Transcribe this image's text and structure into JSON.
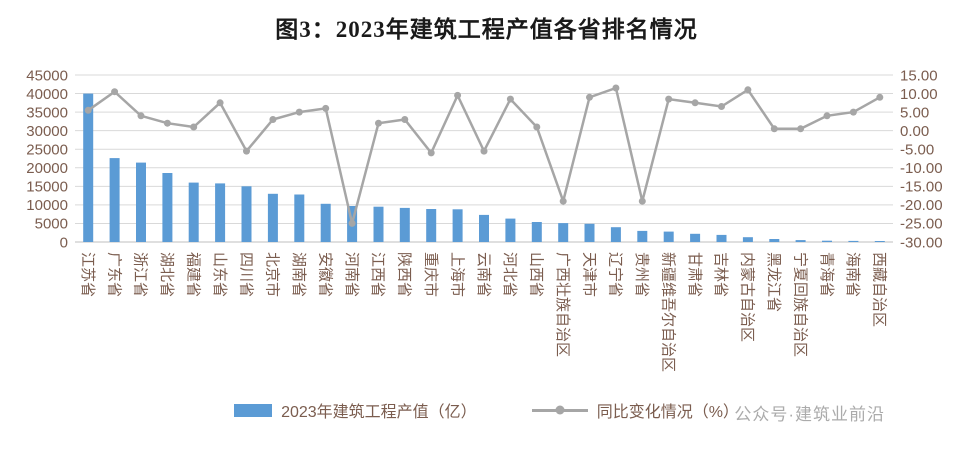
{
  "title": "图3：2023年建筑工程产值各省排名情况",
  "watermark": "公众号·建筑业前沿",
  "legend": [
    {
      "label": "2023年建筑工程产值（亿）",
      "type": "bar"
    },
    {
      "label": "同比变化情况（%）",
      "type": "line"
    }
  ],
  "colors": {
    "bar": "#5B9BD5",
    "line": "#A6A6A6",
    "grid": "#D9D9D9",
    "axis_line": "#BFBFBF",
    "axis_text": "#7b5d4f",
    "title_text": "#1a1a1a",
    "watermark_text": "#ABABAB",
    "background": "#FFFFFF"
  },
  "chart_data": {
    "type": "bar+line",
    "title": "图3：2023年建筑工程产值各省排名情况",
    "xlabel": "",
    "ylabel_left": "2023年建筑工程产值（亿）",
    "ylabel_right": "同比变化情况（%）",
    "grid": true,
    "legend_position": "bottom",
    "categories": [
      "江苏省",
      "广东省",
      "浙江省",
      "湖北省",
      "福建省",
      "山东省",
      "四川省",
      "北京市",
      "湖南省",
      "安徽省",
      "河南省",
      "江西省",
      "陕西省",
      "重庆市",
      "上海市",
      "云南省",
      "河北省",
      "山西省",
      "广西壮族自治区",
      "天津市",
      "辽宁省",
      "贵州省",
      "新疆维吾尔自治区",
      "甘肃省",
      "吉林省",
      "内蒙古自治区",
      "黑龙江省",
      "宁夏回族自治区",
      "青海省",
      "海南省",
      "西藏自治区"
    ],
    "series": [
      {
        "name": "2023年建筑工程产值（亿）",
        "type": "bar",
        "axis": "left",
        "values": [
          40000,
          22600,
          21400,
          18600,
          16000,
          15800,
          15000,
          13000,
          12800,
          10300,
          9700,
          9500,
          9200,
          8900,
          8800,
          7300,
          6300,
          5400,
          5100,
          4900,
          4000,
          3000,
          2800,
          2200,
          1900,
          1300,
          800,
          500,
          350,
          300,
          150
        ]
      },
      {
        "name": "同比变化情况（%）",
        "type": "line",
        "axis": "right",
        "values": [
          5.5,
          10.5,
          4,
          2,
          1,
          7.5,
          -5.5,
          3,
          5,
          6,
          -25,
          2,
          3,
          -6,
          9.5,
          -5.5,
          8.5,
          1,
          -19,
          9,
          11.5,
          -19,
          8.5,
          7.5,
          6.5,
          11,
          0.5,
          0.5,
          4,
          5,
          9
        ]
      }
    ],
    "left_axis": {
      "min": 0,
      "max": 45000,
      "step": 5000,
      "ticks": [
        "45000",
        "40000",
        "35000",
        "30000",
        "25000",
        "20000",
        "15000",
        "10000",
        "5000",
        "0"
      ]
    },
    "right_axis": {
      "min": -30,
      "max": 15,
      "step": 5,
      "ticks": [
        "15.00",
        "10.00",
        "5.00",
        "0.00",
        "-5.00",
        "-10.00",
        "-15.00",
        "-20.00",
        "-25.00",
        "-30.00"
      ]
    }
  }
}
